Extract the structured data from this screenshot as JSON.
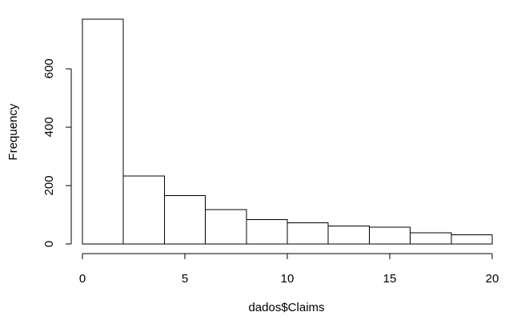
{
  "chart_data": {
    "type": "bar",
    "title": "",
    "xlabel": "dados$Claims",
    "ylabel": "Frequency",
    "bins": [
      {
        "start": 0,
        "end": 2,
        "count": 769
      },
      {
        "start": 2,
        "end": 4,
        "count": 232
      },
      {
        "start": 4,
        "end": 6,
        "count": 165
      },
      {
        "start": 6,
        "end": 8,
        "count": 118
      },
      {
        "start": 8,
        "end": 10,
        "count": 84
      },
      {
        "start": 10,
        "end": 12,
        "count": 73
      },
      {
        "start": 12,
        "end": 14,
        "count": 62
      },
      {
        "start": 14,
        "end": 16,
        "count": 58
      },
      {
        "start": 16,
        "end": 18,
        "count": 38
      },
      {
        "start": 18,
        "end": 20,
        "count": 31
      }
    ],
    "xlim": [
      0,
      20
    ],
    "ylim": [
      0,
      769
    ],
    "xticks": [
      0,
      5,
      10,
      15,
      20
    ],
    "yticks": [
      0,
      200,
      400,
      600
    ],
    "xtick_labels": [
      "0",
      "5",
      "10",
      "15",
      "20"
    ],
    "ytick_labels": [
      "0",
      "200",
      "400",
      "600"
    ],
    "grid": false,
    "legend": "none",
    "bar_fill": "#ffffff",
    "bar_stroke": "#000000"
  }
}
